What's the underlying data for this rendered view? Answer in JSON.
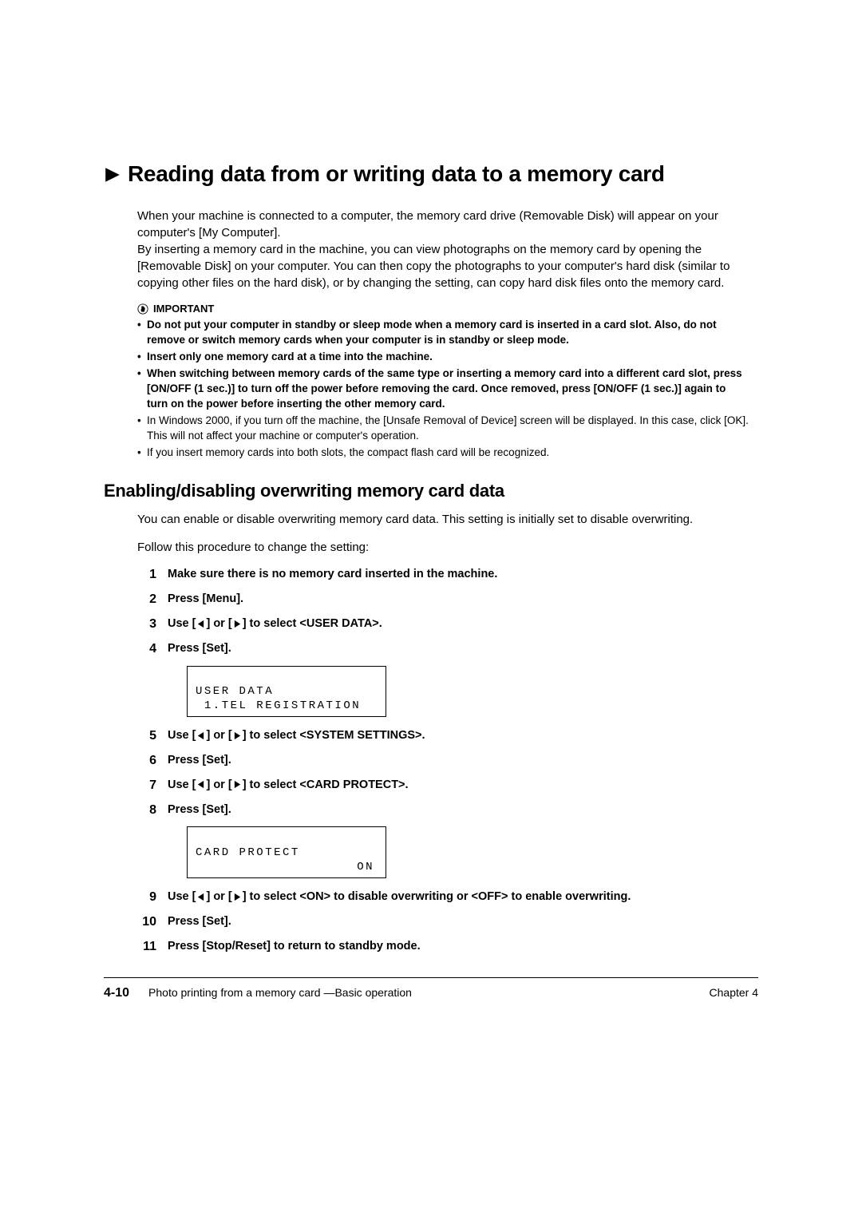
{
  "title_arrow_color": "#000000",
  "title": "Reading data from or writing data to a memory card",
  "intro_paragraph": "When your machine is connected to a computer, the memory card drive (Removable Disk) will appear on your computer's [My Computer].\nBy inserting a memory card in the machine, you can view photographs on the memory card by opening the [Removable Disk] on your computer. You can then copy the photographs to your computer's hard disk (similar to copying other files on the hard disk), or by changing the setting, can copy hard disk files onto the memory card.",
  "important_label": "IMPORTANT",
  "important_items": [
    {
      "bold": true,
      "text": "Do not put your computer in standby or sleep mode when a memory card is inserted in a card slot. Also, do not remove or switch memory cards when your computer is in standby or sleep mode."
    },
    {
      "bold": true,
      "text": "Insert only one memory card at a time into the machine."
    },
    {
      "bold": true,
      "text": "When switching between memory cards of the same type or inserting a memory card into a different card slot, press [ON/OFF (1 sec.)] to turn off the power before removing the card. Once removed, press [ON/OFF (1 sec.)] again to turn on the power before inserting the other memory card."
    },
    {
      "bold": false,
      "text": "In Windows 2000, if you turn off the machine, the [Unsafe Removal of Device] screen will be displayed. In this case, click [OK]. This will not affect your machine or computer's operation."
    },
    {
      "bold": false,
      "text": "If you insert memory cards into both slots, the compact flash card will be recognized."
    }
  ],
  "subsection_title": "Enabling/disabling overwriting memory card data",
  "subsection_body1": "You can enable or disable overwriting memory card data. This setting is initially set to disable overwriting.",
  "subsection_body2": "Follow this procedure to change the setting:",
  "steps": [
    {
      "n": "1",
      "html": "Make sure there is no memory card inserted in the machine."
    },
    {
      "n": "2",
      "html": "Press [Menu]."
    },
    {
      "n": "3",
      "html": "Use [{L}] or [{R}] to select <USER DATA>."
    },
    {
      "n": "4",
      "html": "Press [Set]."
    }
  ],
  "lcd1_line1": "USER DATA",
  "lcd1_line2": " 1.TEL REGISTRATION",
  "steps2": [
    {
      "n": "5",
      "html": "Use [{L}] or [{R}] to select <SYSTEM SETTINGS>."
    },
    {
      "n": "6",
      "html": "Press [Set]."
    },
    {
      "n": "7",
      "html": "Use [{L}] or [{R}] to select <CARD PROTECT>."
    },
    {
      "n": "8",
      "html": "Press [Set]."
    }
  ],
  "lcd2_line1": "CARD PROTECT",
  "lcd2_line2": "ON",
  "steps3": [
    {
      "n": "9",
      "html": "Use [{L}] or [{R}] to select <ON> to disable overwriting or <OFF> to enable overwriting."
    },
    {
      "n": "10",
      "html": "Press [Set]."
    },
    {
      "n": "11",
      "html": "Press [Stop/Reset] to return to standby mode."
    }
  ],
  "footer_page": "4-10",
  "footer_center": "Photo printing from a memory card —Basic operation",
  "footer_right": "Chapter 4"
}
